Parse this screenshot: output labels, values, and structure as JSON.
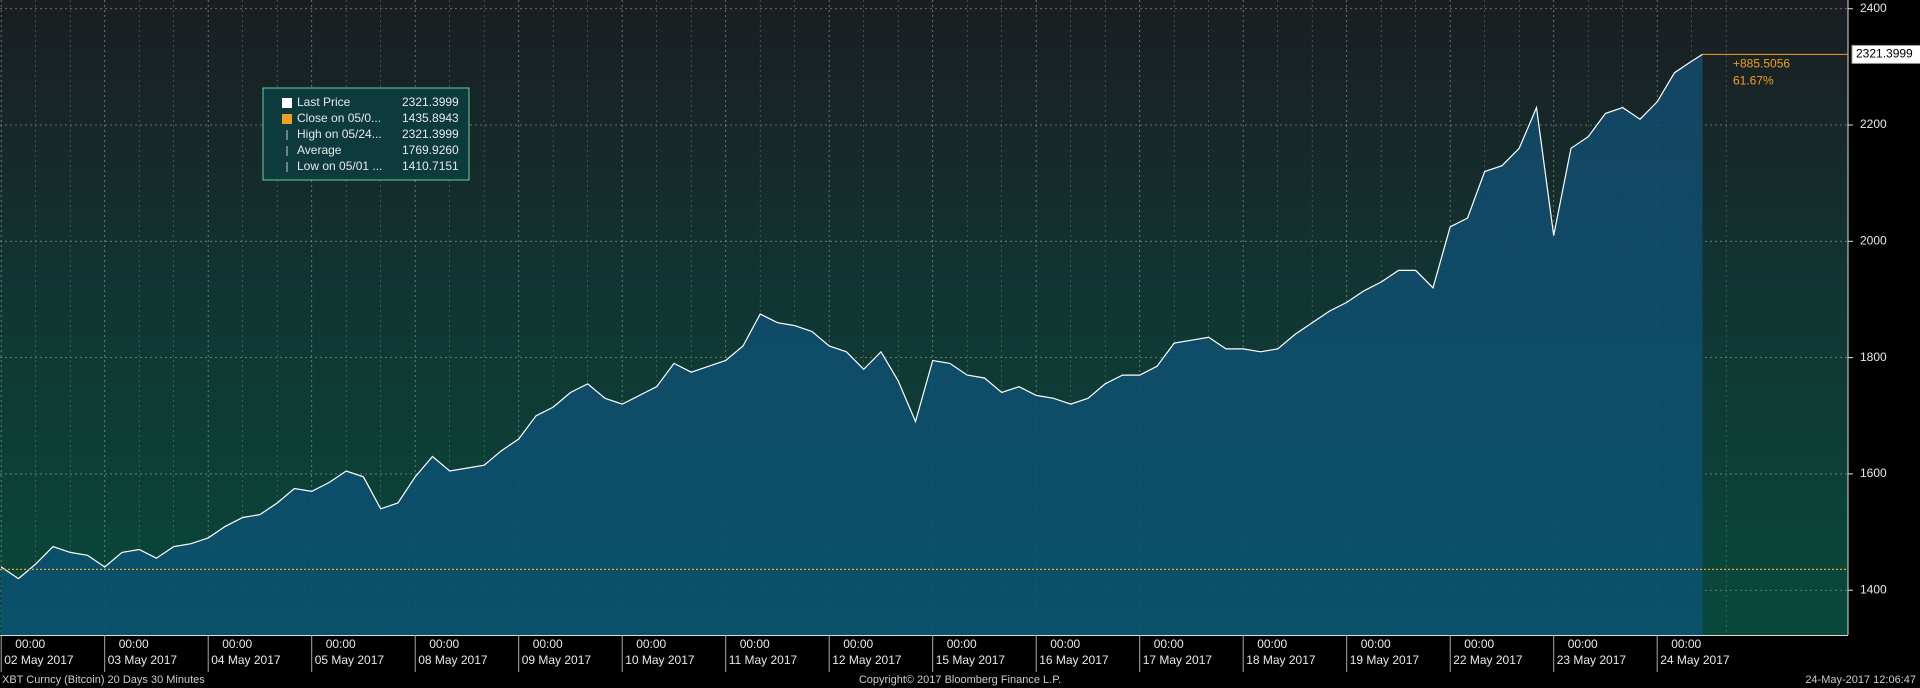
{
  "chart_data": {
    "type": "area",
    "series": [
      {
        "name": "Last Price",
        "color": "#ffffff",
        "x": [
          "2017-05-02 00:00",
          "2017-05-02 04:00",
          "2017-05-02 08:00",
          "2017-05-02 12:00",
          "2017-05-02 16:00",
          "2017-05-02 20:00",
          "2017-05-03 00:00",
          "2017-05-03 04:00",
          "2017-05-03 08:00",
          "2017-05-03 12:00",
          "2017-05-03 16:00",
          "2017-05-03 20:00",
          "2017-05-04 00:00",
          "2017-05-04 04:00",
          "2017-05-04 08:00",
          "2017-05-04 12:00",
          "2017-05-04 16:00",
          "2017-05-04 20:00",
          "2017-05-05 00:00",
          "2017-05-05 04:00",
          "2017-05-05 08:00",
          "2017-05-05 12:00",
          "2017-05-05 16:00",
          "2017-05-05 20:00",
          "2017-05-08 00:00",
          "2017-05-08 04:00",
          "2017-05-08 08:00",
          "2017-05-08 12:00",
          "2017-05-08 16:00",
          "2017-05-08 20:00",
          "2017-05-09 00:00",
          "2017-05-09 04:00",
          "2017-05-09 08:00",
          "2017-05-09 12:00",
          "2017-05-09 16:00",
          "2017-05-09 20:00",
          "2017-05-10 00:00",
          "2017-05-10 04:00",
          "2017-05-10 08:00",
          "2017-05-10 12:00",
          "2017-05-10 16:00",
          "2017-05-10 20:00",
          "2017-05-11 00:00",
          "2017-05-11 04:00",
          "2017-05-11 08:00",
          "2017-05-11 12:00",
          "2017-05-11 16:00",
          "2017-05-11 20:00",
          "2017-05-12 00:00",
          "2017-05-12 04:00",
          "2017-05-12 08:00",
          "2017-05-12 12:00",
          "2017-05-12 16:00",
          "2017-05-12 20:00",
          "2017-05-15 00:00",
          "2017-05-15 04:00",
          "2017-05-15 08:00",
          "2017-05-15 12:00",
          "2017-05-15 16:00",
          "2017-05-15 20:00",
          "2017-05-16 00:00",
          "2017-05-16 04:00",
          "2017-05-16 08:00",
          "2017-05-16 12:00",
          "2017-05-16 16:00",
          "2017-05-16 20:00",
          "2017-05-17 00:00",
          "2017-05-17 04:00",
          "2017-05-17 08:00",
          "2017-05-17 12:00",
          "2017-05-17 16:00",
          "2017-05-17 20:00",
          "2017-05-18 00:00",
          "2017-05-18 04:00",
          "2017-05-18 08:00",
          "2017-05-18 12:00",
          "2017-05-18 16:00",
          "2017-05-18 20:00",
          "2017-05-19 00:00",
          "2017-05-19 04:00",
          "2017-05-19 08:00",
          "2017-05-19 12:00",
          "2017-05-19 16:00",
          "2017-05-19 20:00",
          "2017-05-22 00:00",
          "2017-05-22 04:00",
          "2017-05-22 08:00",
          "2017-05-22 12:00",
          "2017-05-22 16:00",
          "2017-05-22 20:00",
          "2017-05-23 00:00",
          "2017-05-23 04:00",
          "2017-05-23 08:00",
          "2017-05-23 12:00",
          "2017-05-23 16:00",
          "2017-05-23 20:00",
          "2017-05-24 00:00",
          "2017-05-24 04:00",
          "2017-05-24 08:00",
          "2017-05-24 10:30"
        ],
        "values": [
          1440,
          1420,
          1445,
          1475,
          1465,
          1460,
          1440,
          1465,
          1470,
          1455,
          1475,
          1480,
          1490,
          1510,
          1525,
          1530,
          1550,
          1575,
          1570,
          1585,
          1605,
          1595,
          1540,
          1550,
          1595,
          1630,
          1605,
          1610,
          1615,
          1640,
          1660,
          1700,
          1715,
          1740,
          1755,
          1730,
          1720,
          1735,
          1750,
          1790,
          1775,
          1785,
          1795,
          1820,
          1875,
          1860,
          1855,
          1845,
          1820,
          1810,
          1780,
          1810,
          1760,
          1690,
          1795,
          1790,
          1770,
          1765,
          1740,
          1750,
          1735,
          1730,
          1720,
          1730,
          1755,
          1770,
          1770,
          1785,
          1825,
          1830,
          1835,
          1815,
          1815,
          1810,
          1815,
          1840,
          1860,
          1880,
          1895,
          1915,
          1930,
          1950,
          1950,
          1920,
          2025,
          2040,
          2120,
          2130,
          2160,
          2230,
          2010,
          2160,
          2180,
          2220,
          2230,
          2210,
          2240,
          2290,
          2310,
          2321.3999
        ]
      }
    ],
    "reference_value": 1435.8943,
    "last_price": 2321.3999,
    "change": {
      "value": 885.5056,
      "label": "+885.5056"
    },
    "change_pct": {
      "value": 61.67,
      "label": "61.67%"
    },
    "legend": [
      {
        "name": "Last Price",
        "value": 2321.3999
      },
      {
        "name": "Close on 05/0...",
        "value": 1435.8943
      },
      {
        "name": "High on 05/24...",
        "value": 2321.3999
      },
      {
        "name": "Average",
        "value": {
          "value": 1769.926,
          "label": "1769.9260"
        }
      },
      {
        "name": "Low on 05/01 ...",
        "value": 1410.7151
      }
    ],
    "ylim": [
      1323,
      2415
    ],
    "yticks": [
      1400,
      1600,
      1800,
      2000,
      2200,
      2400
    ],
    "xticks": [
      {
        "value": "2017-05-02 00:00",
        "label": [
          "00:00",
          "02 May 2017"
        ]
      },
      {
        "value": "2017-05-03 00:00",
        "label": [
          "00:00",
          "03 May 2017"
        ]
      },
      {
        "value": "2017-05-04 00:00",
        "label": [
          "00:00",
          "04 May 2017"
        ]
      },
      {
        "value": "2017-05-05 00:00",
        "label": [
          "00:00",
          "05 May 2017"
        ]
      },
      {
        "value": "2017-05-08 00:00",
        "label": [
          "00:00",
          "08 May 2017"
        ]
      },
      {
        "value": "2017-05-09 00:00",
        "label": [
          "00:00",
          "09 May 2017"
        ]
      },
      {
        "value": "2017-05-10 00:00",
        "label": [
          "00:00",
          "10 May 2017"
        ]
      },
      {
        "value": "2017-05-11 00:00",
        "label": [
          "00:00",
          "11 May 2017"
        ]
      },
      {
        "value": "2017-05-12 00:00",
        "label": [
          "00:00",
          "12 May 2017"
        ]
      },
      {
        "value": "2017-05-15 00:00",
        "label": [
          "00:00",
          "15 May 2017"
        ]
      },
      {
        "value": "2017-05-16 00:00",
        "label": [
          "00:00",
          "16 May 2017"
        ]
      },
      {
        "value": "2017-05-17 00:00",
        "label": [
          "00:00",
          "17 May 2017"
        ]
      },
      {
        "value": "2017-05-18 00:00",
        "label": [
          "00:00",
          "18 May 2017"
        ]
      },
      {
        "value": "2017-05-19 00:00",
        "label": [
          "00:00",
          "19 May 2017"
        ]
      },
      {
        "value": "2017-05-22 00:00",
        "label": [
          "00:00",
          "22 May 2017"
        ]
      },
      {
        "value": "2017-05-23 00:00",
        "label": [
          "00:00",
          "23 May 2017"
        ]
      },
      {
        "value": "2017-05-24 00:00",
        "label": [
          "00:00",
          "24 May 2017"
        ]
      }
    ],
    "grid": true,
    "footer": {
      "left": "XBT Curncy (Bitcoin) 20 Days 30 Minutes",
      "center": "Copyright© 2017 Bloomberg Finance L.P.",
      "right": "24-May-2017 12:06:47"
    }
  }
}
